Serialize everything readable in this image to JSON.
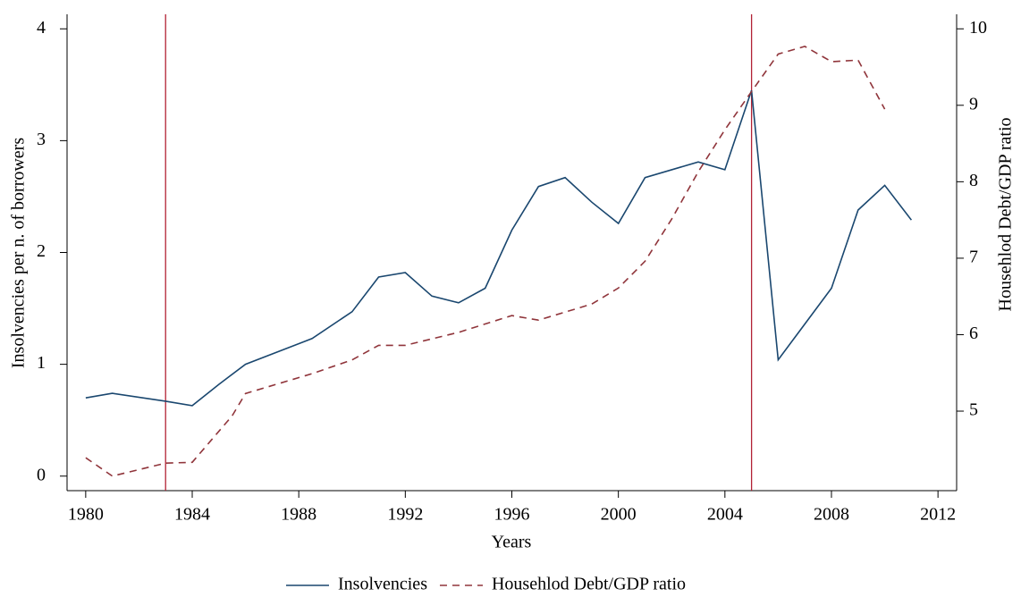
{
  "chart_data": {
    "type": "line",
    "xlabel": "Years",
    "ylabel": "Insolvencies per n. of borrowers",
    "y2label": "Househlod Debt/GDP ratio",
    "xlim": [
      1979.3,
      2012.7
    ],
    "xticks": [
      1980,
      1984,
      1988,
      1992,
      1996,
      2000,
      2004,
      2008,
      2012
    ],
    "ylim": [
      -0.13,
      4.13
    ],
    "yticks": [
      0,
      1,
      2,
      3,
      4
    ],
    "y2lim": [
      3.96,
      10.19
    ],
    "y2ticks": [
      5,
      6,
      7,
      8,
      9,
      10
    ],
    "vlines": [
      1983,
      2005
    ],
    "vline_color": "#b22234",
    "legend": "bottom",
    "series": [
      {
        "name": "Insolvencies",
        "color": "#1a476f",
        "dash": false,
        "x": [
          1980,
          1981,
          1983,
          1984,
          1985,
          1986,
          1988.5,
          1990,
          1991,
          1992,
          1993,
          1994,
          1995,
          1996,
          1997,
          1998,
          1999,
          2000,
          2001,
          2003,
          2004,
          2005,
          2006,
          2008,
          2009,
          2010,
          2011
        ],
        "values": [
          0.7,
          0.74,
          0.67,
          0.63,
          0.82,
          1.0,
          1.23,
          1.47,
          1.78,
          1.82,
          1.61,
          1.55,
          1.68,
          2.2,
          2.59,
          2.67,
          2.45,
          2.26,
          2.67,
          2.81,
          2.74,
          3.45,
          1.04,
          1.68,
          2.38,
          2.6,
          2.29
        ]
      },
      {
        "name": "Househlod Debt/GDP ratio",
        "color": "#90353b",
        "dash": true,
        "axis": "y2",
        "x": [
          1980,
          1981,
          1983,
          1984,
          1985.5,
          1986,
          1988.5,
          1990,
          1991,
          1992,
          1994,
          1996,
          1997,
          1999,
          2000,
          2001,
          2002,
          2003,
          2004,
          2005,
          2006,
          2007,
          2008,
          2009,
          2010
        ],
        "values": [
          4.39,
          4.15,
          4.32,
          4.33,
          4.94,
          5.23,
          5.49,
          5.67,
          5.86,
          5.86,
          6.03,
          6.25,
          6.19,
          6.4,
          6.61,
          6.96,
          7.51,
          8.13,
          8.68,
          9.18,
          9.67,
          9.77,
          9.57,
          9.59,
          8.95
        ]
      }
    ]
  }
}
